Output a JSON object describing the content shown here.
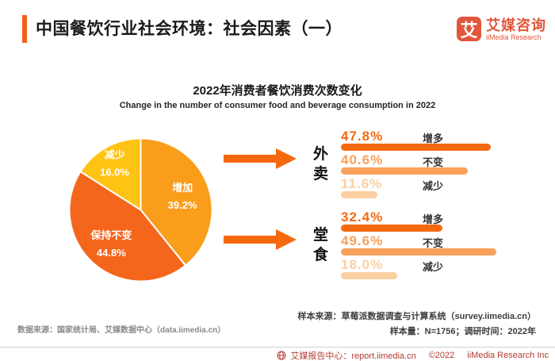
{
  "header": {
    "title": "中国餐饮行业社会环境：社会因素（一）",
    "logo": {
      "glyph": "艾",
      "name_cn": "艾媒咨询",
      "name_en": "iiMedia Research"
    }
  },
  "chart": {
    "title": "2022年消费者餐饮消费次数变化",
    "subtitle": "Change in the number of consumer food and beverage consumption in 2022"
  },
  "chart_data": [
    {
      "type": "pie",
      "title": "2022年消费者餐饮消费次数变化",
      "labels": [
        "增加",
        "保持不变",
        "减少"
      ],
      "values": [
        39.2,
        44.8,
        16.0
      ],
      "colors": [
        "#FA9D1B",
        "#F4661B",
        "#FFC314"
      ],
      "unit": "%",
      "start_angle_deg": 0,
      "direction": "clockwise",
      "legend": "labels-inside-slices"
    },
    {
      "type": "bar",
      "group": "外卖",
      "categories": [
        "增多",
        "不变",
        "减少"
      ],
      "values": [
        47.8,
        40.6,
        11.6
      ],
      "colors": [
        "#F5690E",
        "#F9A15B",
        "#FBCFA0"
      ],
      "unit": "%",
      "orientation": "horizontal"
    },
    {
      "type": "bar",
      "group": "堂食",
      "categories": [
        "增多",
        "不变",
        "减少"
      ],
      "values": [
        32.4,
        49.6,
        18.0
      ],
      "colors": [
        "#F5690E",
        "#F9A15B",
        "#FBCFA0"
      ],
      "unit": "%",
      "orientation": "horizontal"
    }
  ],
  "footnotes": {
    "data_source": "数据来源：国家统计局、艾媒数据中心（data.iimedia.cn）",
    "sample_source": "样本来源：草莓派数据调查与计算系统（survey.iimedia.cn）",
    "sample_info": "样本量：N=1756；调研时间：2022年"
  },
  "footer": {
    "report_center": "艾媒报告中心：report.iimedia.cn",
    "copyright": "©2022",
    "company": "iiMedia Research Inc"
  },
  "colors": {
    "accent": "#F2611C",
    "brand": "#E2563B",
    "arrow": "#F5690E",
    "footer": "#B23A30"
  }
}
